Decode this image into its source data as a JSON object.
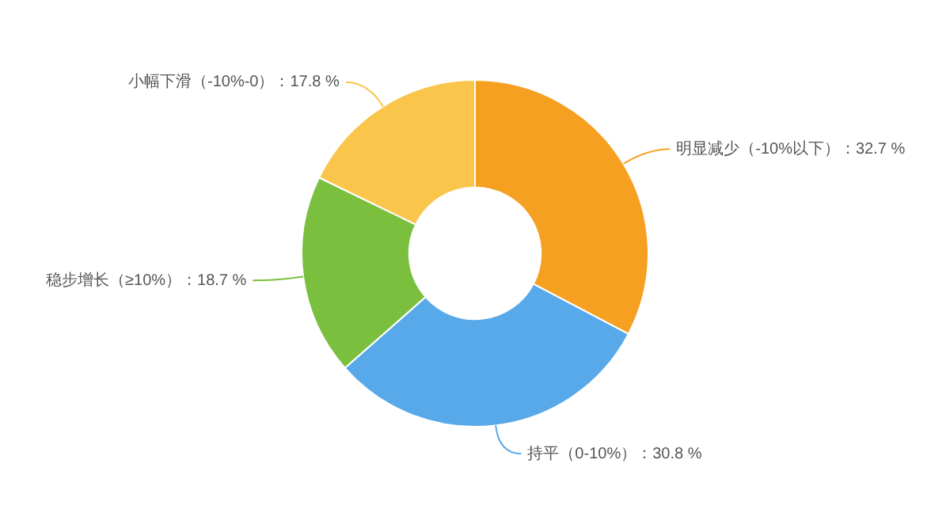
{
  "chart_data": {
    "type": "donut",
    "categories": [
      "明显减少（-10%以下）",
      "持平（0-10%）",
      "稳步增长（≥10%）",
      "小幅下滑（-10%-0）"
    ],
    "values": [
      32.7,
      30.8,
      18.7,
      17.8
    ],
    "colors": [
      "#f6a021",
      "#58a9ea",
      "#7bbf3f",
      "#f9c54b"
    ],
    "value_labels": [
      "32.7 %",
      "30.8 %",
      "18.7 %",
      "17.8 %"
    ],
    "legend": false
  }
}
